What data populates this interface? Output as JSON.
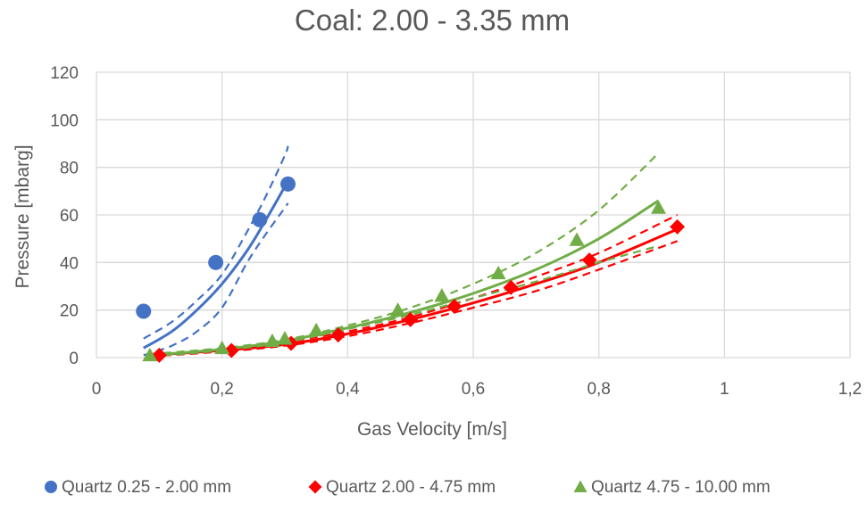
{
  "chart_data": {
    "type": "scatter",
    "title": "Coal: 2.00 - 3.35 mm",
    "xlabel": "Gas Velocity [m/s]",
    "ylabel": "Pressure [mbarg]",
    "xlim": [
      0,
      1.2
    ],
    "ylim": [
      0,
      120
    ],
    "x_ticks": [
      "0",
      "0,2",
      "0,4",
      "0,6",
      "0,8",
      "1",
      "1,2"
    ],
    "y_ticks": [
      "0",
      "20",
      "40",
      "60",
      "80",
      "100",
      "120"
    ],
    "x_tick_values": [
      0,
      0.2,
      0.4,
      0.6,
      0.8,
      1.0,
      1.2
    ],
    "y_tick_values": [
      0,
      20,
      40,
      60,
      80,
      100,
      120
    ],
    "grid": true,
    "legend_position": "bottom",
    "series": [
      {
        "name": "Quartz 0.25 - 2.00 mm",
        "color": "#4472C4",
        "marker": "circle",
        "points": [
          [
            0.075,
            19.5
          ],
          [
            0.19,
            40
          ],
          [
            0.26,
            58
          ],
          [
            0.305,
            73
          ]
        ],
        "fit": [
          [
            0.075,
            4
          ],
          [
            0.12,
            11
          ],
          [
            0.16,
            20
          ],
          [
            0.2,
            31
          ],
          [
            0.24,
            45
          ],
          [
            0.27,
            58
          ],
          [
            0.3,
            72
          ],
          [
            0.305,
            75
          ]
        ],
        "upper": [
          [
            0.075,
            8
          ],
          [
            0.12,
            15
          ],
          [
            0.16,
            24
          ],
          [
            0.2,
            35
          ],
          [
            0.24,
            53
          ],
          [
            0.27,
            68
          ],
          [
            0.3,
            85
          ],
          [
            0.305,
            89
          ]
        ],
        "lower": [
          [
            0.075,
            1
          ],
          [
            0.12,
            5
          ],
          [
            0.16,
            11
          ],
          [
            0.2,
            21
          ],
          [
            0.24,
            40
          ],
          [
            0.27,
            52
          ],
          [
            0.3,
            63
          ],
          [
            0.305,
            65
          ]
        ]
      },
      {
        "name": "Quartz 2.00 - 4.75 mm",
        "color": "#FF0000",
        "marker": "diamond",
        "points": [
          [
            0.1,
            1
          ],
          [
            0.215,
            3
          ],
          [
            0.31,
            6
          ],
          [
            0.385,
            9.5
          ],
          [
            0.5,
            16
          ],
          [
            0.57,
            21.5
          ],
          [
            0.66,
            29.5
          ],
          [
            0.785,
            41
          ],
          [
            0.925,
            55
          ]
        ],
        "fit": [
          [
            0.085,
            1
          ],
          [
            0.2,
            3
          ],
          [
            0.3,
            5.5
          ],
          [
            0.4,
            10
          ],
          [
            0.5,
            16
          ],
          [
            0.6,
            23
          ],
          [
            0.7,
            31
          ],
          [
            0.8,
            40
          ],
          [
            0.925,
            54
          ]
        ],
        "upper": [
          [
            0.085,
            1.5
          ],
          [
            0.2,
            3.5
          ],
          [
            0.3,
            6.5
          ],
          [
            0.4,
            11
          ],
          [
            0.5,
            17
          ],
          [
            0.6,
            25
          ],
          [
            0.7,
            34
          ],
          [
            0.8,
            44
          ],
          [
            0.925,
            60
          ]
        ],
        "lower": [
          [
            0.085,
            0.5
          ],
          [
            0.2,
            2.5
          ],
          [
            0.3,
            5
          ],
          [
            0.4,
            9
          ],
          [
            0.5,
            14.5
          ],
          [
            0.6,
            21
          ],
          [
            0.7,
            28
          ],
          [
            0.8,
            37
          ],
          [
            0.925,
            49
          ]
        ]
      },
      {
        "name": "Quartz 4.75 - 10.00 mm",
        "color": "#70AD47",
        "marker": "triangle",
        "points": [
          [
            0.085,
            1
          ],
          [
            0.2,
            4
          ],
          [
            0.28,
            7
          ],
          [
            0.3,
            8
          ],
          [
            0.35,
            11.5
          ],
          [
            0.48,
            20
          ],
          [
            0.55,
            26
          ],
          [
            0.64,
            35.5
          ],
          [
            0.765,
            49.5
          ],
          [
            0.895,
            63
          ]
        ],
        "fit": [
          [
            0.085,
            1
          ],
          [
            0.2,
            3.5
          ],
          [
            0.3,
            7
          ],
          [
            0.4,
            12.5
          ],
          [
            0.5,
            19
          ],
          [
            0.6,
            27
          ],
          [
            0.7,
            37
          ],
          [
            0.8,
            50
          ],
          [
            0.895,
            66
          ]
        ],
        "upper": [
          [
            0.085,
            1.5
          ],
          [
            0.2,
            4
          ],
          [
            0.3,
            7.5
          ],
          [
            0.4,
            13.5
          ],
          [
            0.5,
            21
          ],
          [
            0.6,
            31
          ],
          [
            0.7,
            44
          ],
          [
            0.8,
            62
          ],
          [
            0.895,
            86
          ]
        ],
        "lower": [
          [
            0.085,
            0.5
          ],
          [
            0.2,
            3
          ],
          [
            0.3,
            6.5
          ],
          [
            0.4,
            12
          ],
          [
            0.5,
            18
          ],
          [
            0.6,
            25
          ],
          [
            0.7,
            32
          ],
          [
            0.8,
            40
          ],
          [
            0.895,
            47
          ]
        ]
      }
    ]
  }
}
